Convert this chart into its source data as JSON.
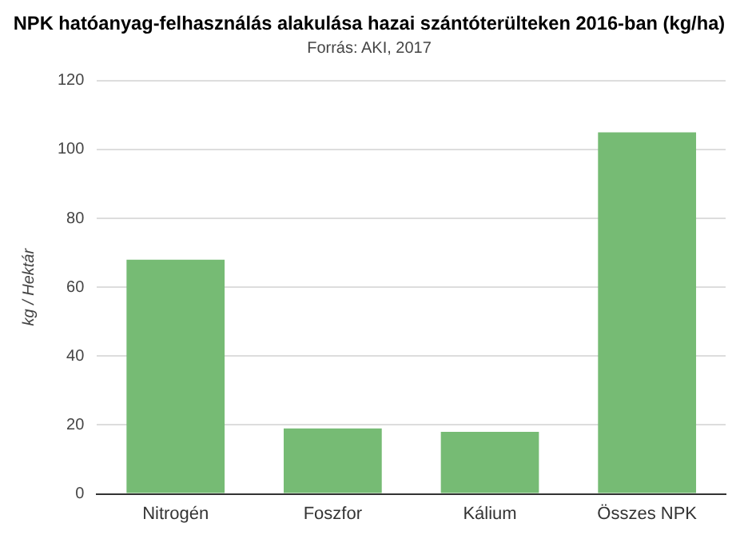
{
  "chart_data": {
    "type": "bar",
    "title": "NPK hatóanyag-felhasználás alakulása hazai szántóterülteken 2016-ban (kg/ha)",
    "subtitle": "Forrás: AKI, 2017",
    "ylabel": "kg / Hektár",
    "categories": [
      "Nitrogén",
      "Foszfor",
      "Kálium",
      "Összes NPK"
    ],
    "values": [
      68,
      19,
      18,
      105
    ],
    "color": "#76bb74",
    "ylim": [
      0,
      120
    ],
    "yticks": [
      0,
      20,
      40,
      60,
      80,
      100,
      120
    ],
    "grid": "y",
    "legend": false
  }
}
